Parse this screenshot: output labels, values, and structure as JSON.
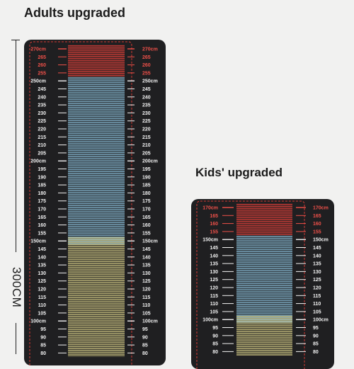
{
  "titles": {
    "adults": "Adults upgraded",
    "kids": "Kids' upgraded"
  },
  "dimension_label": "300CM",
  "colors": {
    "mat": "#1f1f21",
    "red": "#e0403a",
    "blue": "#8ec3de",
    "yellow": "#d9d08a",
    "dash": "#d63a32",
    "label_red": "#ee5049",
    "label_white": "#f2f2f2"
  },
  "adults_mat": {
    "top_value": 270,
    "bottom_value": 80,
    "step": 5,
    "zones": [
      {
        "color": "red",
        "from": 255,
        "to": 270
      },
      {
        "color": "blue",
        "from": 150,
        "to": 250
      },
      {
        "color": "yellow",
        "from": 80,
        "to": 150
      }
    ],
    "labels": [
      "270cm",
      "265",
      "260",
      "255",
      "250cm",
      "245",
      "240",
      "235",
      "230",
      "225",
      "220",
      "215",
      "210",
      "205",
      "200cm",
      "195",
      "190",
      "185",
      "180",
      "175",
      "170",
      "165",
      "160",
      "155",
      "150cm",
      "145",
      "140",
      "135",
      "130",
      "125",
      "120",
      "115",
      "110",
      "105",
      "100cm",
      "95",
      "90",
      "85",
      "80"
    ]
  },
  "kids_mat": {
    "top_value": 170,
    "bottom_value": 80,
    "step": 5,
    "zones": [
      {
        "color": "red",
        "from": 155,
        "to": 170
      },
      {
        "color": "blue",
        "from": 100,
        "to": 150
      },
      {
        "color": "yellow",
        "from": 80,
        "to": 100
      }
    ],
    "labels": [
      "170cm",
      "165",
      "160",
      "155",
      "150cm",
      "145",
      "140",
      "135",
      "130",
      "125",
      "120",
      "115",
      "110",
      "105",
      "100cm",
      "95",
      "90",
      "85",
      "80"
    ]
  }
}
